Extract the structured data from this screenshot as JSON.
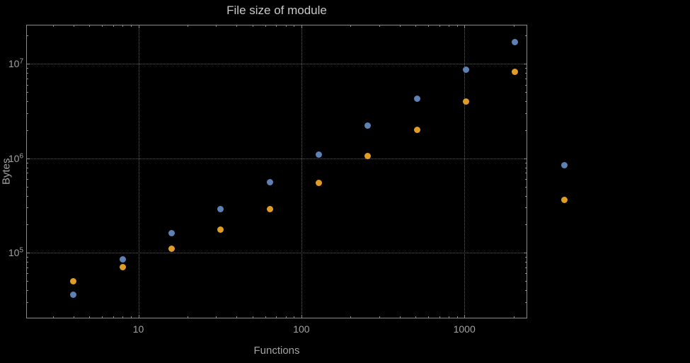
{
  "title": "File size of module",
  "chart_data": {
    "type": "scatter",
    "title": "File size of module",
    "xlabel": "Functions",
    "ylabel": "Bytes",
    "x_axis": {
      "label": "Functions",
      "scale": "log",
      "range": [
        2.05,
        2430
      ],
      "ticks": [
        {
          "value": 10,
          "label": "10"
        },
        {
          "value": 100,
          "label": "100"
        },
        {
          "value": 1000,
          "label": "1000"
        }
      ]
    },
    "y_axis": {
      "label": "Bytes",
      "scale": "log",
      "range": [
        20000,
        26000000
      ],
      "ticks": [
        {
          "value": 100000,
          "base": "10",
          "exp": "5"
        },
        {
          "value": 1000000,
          "base": "10",
          "exp": "6"
        },
        {
          "value": 10000000,
          "base": "10",
          "exp": "7"
        }
      ]
    },
    "x": [
      4,
      8,
      16,
      32,
      64,
      128,
      256,
      512,
      1024,
      2048,
      4096
    ],
    "series": [
      {
        "name": "blue-series",
        "color": "#5e81b5",
        "values": [
          36000,
          85000,
          160000,
          290000,
          560000,
          1100000,
          2200000,
          4300000,
          8700000,
          17000000,
          850000
        ]
      },
      {
        "name": "orange-series",
        "color": "#e19c24",
        "values": [
          50000,
          70000,
          110000,
          175000,
          290000,
          550000,
          1050000,
          2000000,
          4000000,
          8200000,
          360000
        ]
      }
    ],
    "grid": "dotted",
    "legend": "none",
    "colors": {
      "background": "#000000",
      "frame": "#8a8a8a",
      "grid": "#5f5f5f",
      "labels": "#a3a3a3",
      "title": "#c9c9c9"
    }
  }
}
